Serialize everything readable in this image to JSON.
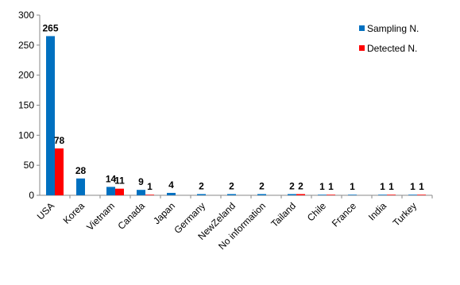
{
  "chart_data": {
    "type": "bar",
    "categories": [
      "USA",
      "Korea",
      "Vietnam",
      "Canada",
      "Japan",
      "Germany",
      "NewZeland",
      "No information",
      "Tailand",
      "Chile",
      "France",
      "India",
      "Turkey"
    ],
    "series": [
      {
        "name": "Sampling N.",
        "color": "#0070c0",
        "values": [
          265,
          28,
          14,
          9,
          4,
          2,
          2,
          2,
          2,
          1,
          1,
          1,
          1
        ]
      },
      {
        "name": "Detected N.",
        "color": "#ff0000",
        "values": [
          78,
          null,
          11,
          1,
          null,
          null,
          null,
          null,
          2,
          1,
          null,
          1,
          1
        ]
      }
    ],
    "ylim": [
      0,
      300
    ],
    "yticks": [
      0,
      50,
      100,
      150,
      200,
      250,
      300
    ],
    "grid": false,
    "legend": "top-right"
  }
}
